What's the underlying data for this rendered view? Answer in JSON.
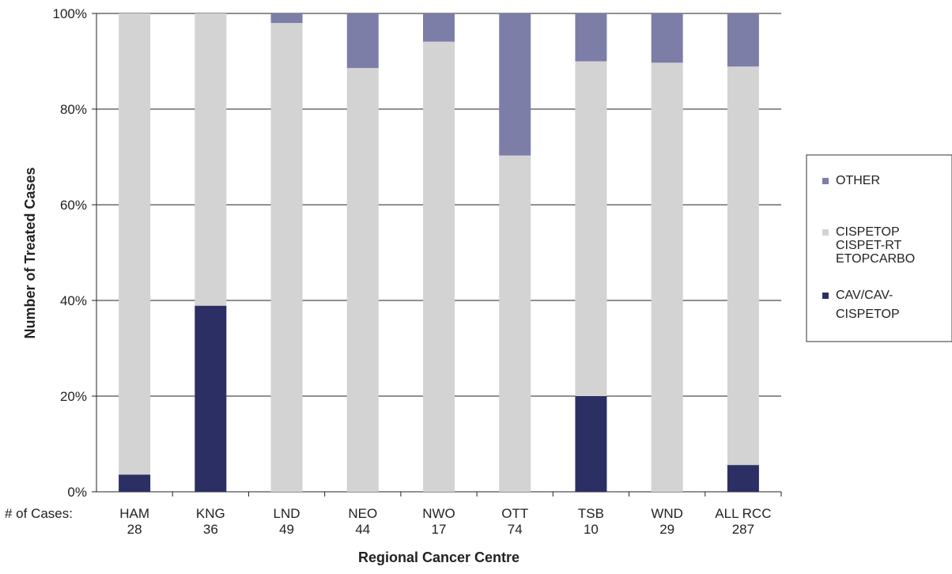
{
  "chart_data": {
    "type": "bar",
    "stacked": true,
    "xlabel": "Regional Cancer Centre",
    "ylabel": "Number of Treated Cases",
    "ylim": [
      0,
      100
    ],
    "yticks": [
      "0%",
      "20%",
      "40%",
      "60%",
      "80%",
      "100%"
    ],
    "grid": true,
    "cases_row_label": "# of Cases:",
    "categories": [
      "HAM",
      "KNG",
      "LND",
      "NEO",
      "NWO",
      "OTT",
      "TSB",
      "WND",
      "ALL RCC"
    ],
    "case_counts": [
      "28",
      "36",
      "49",
      "44",
      "17",
      "74",
      "10",
      "29",
      "287"
    ],
    "series": [
      {
        "name": "CAV/CAV-CISPETOP",
        "legend_lines": [
          "CAV/CAV-",
          "CISPETOP"
        ],
        "color": "#2b2f63",
        "values": [
          3.6,
          38.9,
          0,
          0,
          0,
          0,
          20.0,
          0,
          5.6
        ]
      },
      {
        "name": "CISPETOP CISPET-RT ETOPCARBO",
        "legend_lines": [
          "CISPETOP",
          "CISPET-RT",
          "ETOPCARBO"
        ],
        "color": "#d3d3d3",
        "values": [
          96.4,
          61.1,
          98.0,
          88.6,
          94.1,
          70.3,
          70.0,
          89.7,
          83.3
        ]
      },
      {
        "name": "OTHER",
        "legend_lines": [
          "OTHER"
        ],
        "color": "#7c7ea8",
        "values": [
          0,
          0,
          2.0,
          11.4,
          5.9,
          29.7,
          10.0,
          10.3,
          11.1
        ]
      }
    ],
    "legend": {
      "position": "right",
      "order": [
        "OTHER",
        "CISPETOP CISPET-RT ETOPCARBO",
        "CAV/CAV-CISPETOP"
      ]
    }
  }
}
